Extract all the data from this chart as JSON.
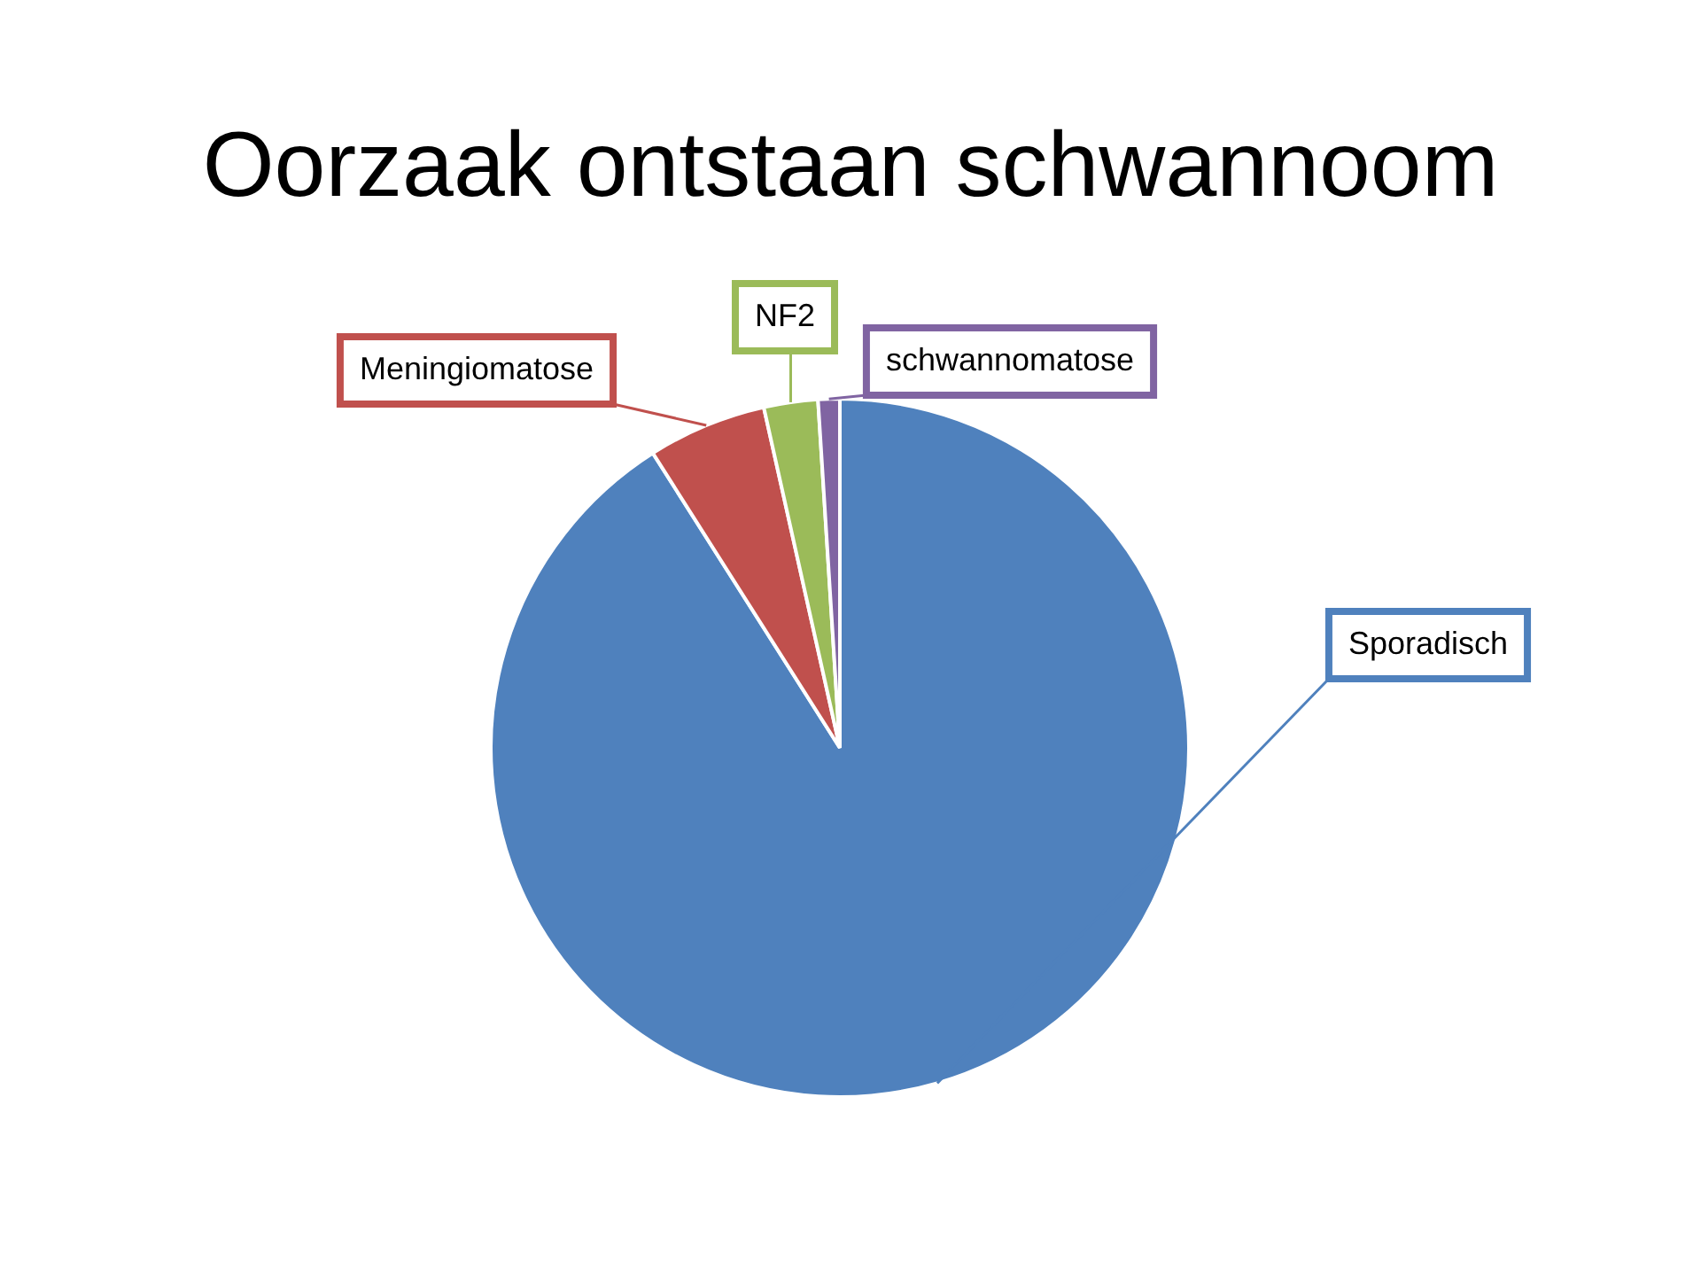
{
  "chart_data": {
    "type": "pie",
    "title": "Oorzaak ontstaan schwannoom",
    "categories": [
      "Sporadisch",
      "Meningiomatose",
      "NF2",
      "schwannomatose"
    ],
    "values": [
      91,
      5.5,
      2.5,
      1
    ],
    "colors": [
      "#4f81bd",
      "#c0504d",
      "#9bbb59",
      "#8064a2"
    ],
    "legend": false
  }
}
